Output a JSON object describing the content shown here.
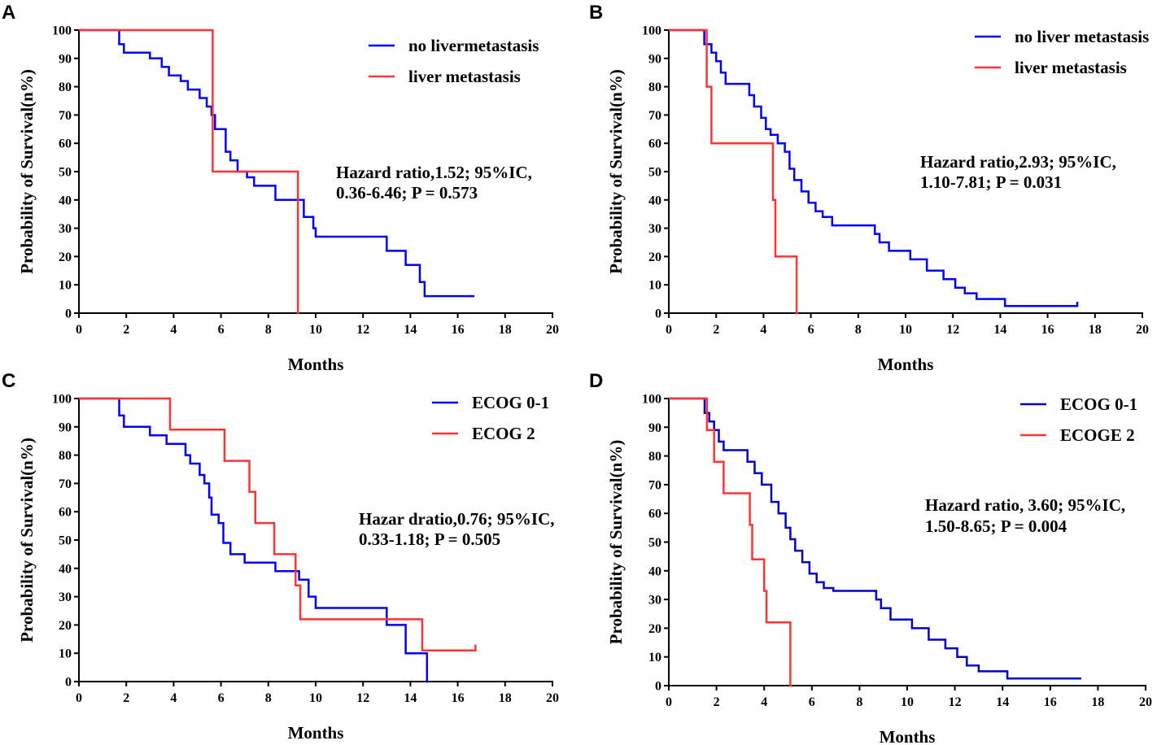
{
  "chart_data": [
    {
      "panel": "A",
      "type": "line",
      "subtype": "kaplan-meier-step",
      "xlabel": "Months",
      "ylabel": "Probability of Survival(n%)",
      "xlim": [
        0,
        20
      ],
      "ylim": [
        0,
        100
      ],
      "xticks": [
        0,
        2,
        4,
        6,
        8,
        10,
        12,
        14,
        16,
        18,
        20
      ],
      "yticks": [
        0,
        10,
        20,
        30,
        40,
        50,
        60,
        70,
        80,
        90,
        100
      ],
      "legend_position": "top-right",
      "annotation": [
        "Hazard ratio,1.52; 95%IC,",
        "0.36-6.46; P = 0.573"
      ],
      "series": [
        {
          "name": "no livermetastasis",
          "color": "#0000ff",
          "x": [
            0,
            1.7,
            1.9,
            3.0,
            3.5,
            3.8,
            4.3,
            4.6,
            5.1,
            5.4,
            5.6,
            5.75,
            6.2,
            6.4,
            6.7,
            7.1,
            7.4,
            8.3,
            8.8,
            9.5,
            9.9,
            10.0,
            13.0,
            13.8,
            14.4,
            14.6,
            16.7
          ],
          "y": [
            100,
            95,
            92,
            90,
            87,
            84,
            82,
            79,
            76,
            73,
            70,
            65,
            57,
            54,
            50,
            48,
            45,
            40,
            40,
            34,
            30,
            27,
            22,
            17,
            11,
            6,
            6
          ]
        },
        {
          "name": "liver metastasis",
          "color": "#ff3333",
          "x": [
            0,
            5.65,
            9.25,
            9.3
          ],
          "y": [
            100,
            50,
            0,
            0
          ]
        }
      ]
    },
    {
      "panel": "B",
      "type": "line",
      "subtype": "kaplan-meier-step",
      "xlabel": "Months",
      "ylabel": "Probability of Survival(n%)",
      "xlim": [
        0,
        20
      ],
      "ylim": [
        0,
        100
      ],
      "xticks": [
        0,
        2,
        4,
        6,
        8,
        10,
        12,
        14,
        16,
        18,
        20
      ],
      "yticks": [
        0,
        10,
        20,
        30,
        40,
        50,
        60,
        70,
        80,
        90,
        100
      ],
      "legend_position": "top-right",
      "annotation": [
        "Hazard ratio,2.93; 95%IC,",
        "1.10-7.81; P = 0.031"
      ],
      "series": [
        {
          "name": "no liver metastasis",
          "color": "#0000ff",
          "x": [
            0,
            1.5,
            1.8,
            2.0,
            2.2,
            2.4,
            3.4,
            3.6,
            3.9,
            4.1,
            4.3,
            4.6,
            4.9,
            5.1,
            5.3,
            5.6,
            5.9,
            6.2,
            6.5,
            6.9,
            8.7,
            8.9,
            9.3,
            9.5,
            10.2,
            10.9,
            11.6,
            12.1,
            12.5,
            13.0,
            14.2,
            17.2,
            17.25
          ],
          "y": [
            100,
            95,
            92,
            89,
            85,
            81,
            77,
            73,
            69,
            65,
            63,
            60,
            57,
            51,
            47,
            43,
            39,
            36,
            34,
            31,
            28,
            25,
            22,
            22,
            19,
            15,
            12,
            9,
            7,
            5,
            2.5,
            2.5,
            4
          ]
        },
        {
          "name": "liver metastasis",
          "color": "#ff3333",
          "x": [
            0,
            1.6,
            1.8,
            4.4,
            4.5,
            5.4,
            5.45
          ],
          "y": [
            100,
            80,
            60,
            40,
            20,
            0,
            0
          ]
        }
      ]
    },
    {
      "panel": "C",
      "type": "line",
      "subtype": "kaplan-meier-step",
      "xlabel": "Months",
      "ylabel": "Probability of Survival(n%)",
      "xlim": [
        0,
        20
      ],
      "ylim": [
        0,
        100
      ],
      "xticks": [
        0,
        2,
        4,
        6,
        8,
        10,
        12,
        14,
        16,
        18,
        20
      ],
      "yticks": [
        0,
        10,
        20,
        30,
        40,
        50,
        60,
        70,
        80,
        90,
        100
      ],
      "legend_position": "top-right",
      "annotation": [
        "Hazar dratio,0.76; 95%IC,",
        "0.33-1.18; P = 0.505"
      ],
      "series": [
        {
          "name": "ECOG 0-1",
          "color": "#0000ff",
          "x": [
            0,
            1.7,
            1.9,
            3.0,
            3.7,
            4.5,
            4.7,
            5.1,
            5.3,
            5.5,
            5.6,
            5.9,
            6.1,
            6.4,
            6.8,
            7.0,
            8.3,
            9.3,
            9.7,
            10.0,
            13.0,
            13.8,
            14.7,
            14.75
          ],
          "y": [
            100,
            94,
            90,
            87,
            84,
            80,
            77,
            73,
            70,
            65,
            59,
            56,
            49,
            45,
            45,
            42,
            39,
            36,
            30,
            26,
            20,
            10,
            0,
            0
          ]
        },
        {
          "name": "ECOG 2",
          "color": "#ff3333",
          "x": [
            0,
            3.85,
            6.15,
            7.2,
            7.45,
            8.25,
            9.15,
            9.35,
            14.5,
            16.7,
            16.75
          ],
          "y": [
            100,
            89,
            78,
            67,
            56,
            45,
            34,
            22,
            11,
            11,
            13
          ]
        }
      ]
    },
    {
      "panel": "D",
      "type": "line",
      "subtype": "kaplan-meier-step",
      "xlabel": "Months",
      "ylabel": "Probability of Survival(n%)",
      "xlim": [
        0,
        20
      ],
      "ylim": [
        0,
        100
      ],
      "xticks": [
        0,
        2,
        4,
        6,
        8,
        10,
        12,
        14,
        16,
        18,
        20
      ],
      "yticks": [
        0,
        10,
        20,
        30,
        40,
        50,
        60,
        70,
        80,
        90,
        100
      ],
      "legend_position": "top-right",
      "annotation": [
        "Hazard ratio, 3.60; 95%IC,",
        "1.50-8.65; P = 0.004"
      ],
      "series": [
        {
          "name": "ECOG 0-1",
          "color": "#0000cc",
          "x": [
            0,
            1.5,
            1.7,
            1.9,
            2.1,
            2.3,
            3.3,
            3.6,
            3.9,
            4.3,
            4.6,
            4.9,
            5.1,
            5.3,
            5.6,
            5.9,
            6.2,
            6.5,
            6.9,
            8.7,
            8.9,
            9.3,
            9.5,
            10.2,
            10.9,
            11.6,
            12.1,
            12.5,
            13.0,
            14.2,
            17.3
          ],
          "y": [
            100,
            95,
            92,
            89,
            85,
            82,
            78,
            74,
            70,
            64,
            60,
            55,
            51,
            47,
            43,
            39,
            36,
            34,
            33,
            30,
            27,
            23,
            23,
            20,
            16,
            13,
            10,
            7,
            5,
            2.5,
            2.5
          ]
        },
        {
          "name": "ECOGE 2",
          "color": "#ff3333",
          "x": [
            0,
            1.6,
            1.9,
            2.3,
            3.4,
            3.5,
            4.0,
            4.1,
            5.1,
            5.15
          ],
          "y": [
            100,
            89,
            78,
            67,
            56,
            44,
            33,
            22,
            0,
            0
          ]
        }
      ]
    }
  ],
  "panel_letters": [
    "A",
    "B",
    "C",
    "D"
  ]
}
